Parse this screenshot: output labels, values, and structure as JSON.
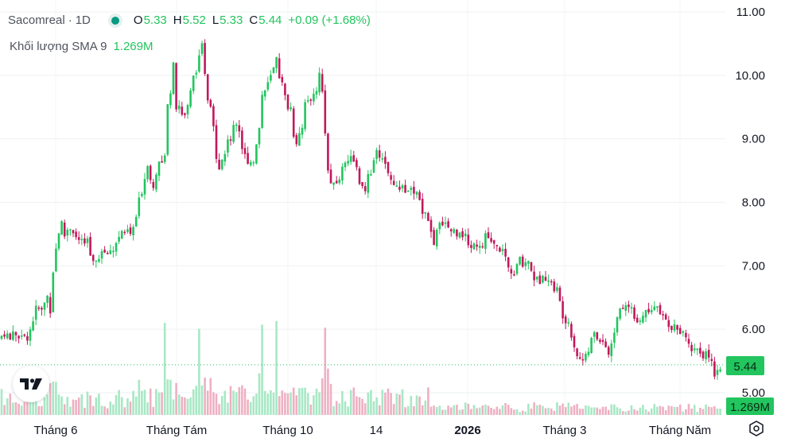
{
  "legend": {
    "symbol": "Sacomreal",
    "separator": "·",
    "interval": "1D",
    "o_label": "O",
    "o_value": "5.33",
    "h_label": "H",
    "h_value": "5.52",
    "l_label": "L",
    "l_value": "5.33",
    "c_label": "C",
    "c_value": "5.44",
    "change": "+0.09 (+1.68%)"
  },
  "volume_legend": {
    "label": "Khối lượng SMA 9",
    "value": "1.269M"
  },
  "icons": {
    "logo": "tradingview-logo-icon",
    "settings": "gear-icon"
  },
  "colors": {
    "up": "#22c55e",
    "down": "#c2185b",
    "vol_up": "#a7e8c4",
    "vol_down": "#eeb0c3",
    "price_tag": "#22c55e"
  },
  "chart_data": {
    "type": "candlestick",
    "y_axis": {
      "labels": [
        "11.00",
        "10.00",
        "9.00",
        "8.00",
        "7.00",
        "6.00",
        "5.00"
      ],
      "range": [
        4.9,
        11.1
      ]
    },
    "x_axis": {
      "labels": [
        "Tháng 6",
        "Tháng Tám",
        "Tháng 10",
        "14",
        "2026",
        "Tháng 3",
        "Tháng Năm"
      ]
    },
    "last_price_label": "5.44",
    "last_volume_label": "1.269M",
    "grid": true,
    "price_path": [
      [
        0,
        5.88
      ],
      [
        25,
        5.9
      ],
      [
        35,
        5.92
      ],
      [
        45,
        6.3
      ],
      [
        52,
        6.3
      ],
      [
        58,
        6.5
      ],
      [
        63,
        6.4
      ],
      [
        66,
        6.9
      ],
      [
        70,
        7.3
      ],
      [
        76,
        7.8
      ],
      [
        82,
        7.5
      ],
      [
        92,
        7.6
      ],
      [
        100,
        7.3
      ],
      [
        110,
        7.35
      ],
      [
        116,
        7.05
      ],
      [
        128,
        7.25
      ],
      [
        140,
        7.2
      ],
      [
        150,
        7.5
      ],
      [
        160,
        7.5
      ],
      [
        168,
        7.6
      ],
      [
        174,
        7.9
      ],
      [
        180,
        8.4
      ],
      [
        186,
        8.6
      ],
      [
        192,
        8.2
      ],
      [
        198,
        8.6
      ],
      [
        204,
        8.5
      ],
      [
        210,
        9.4
      ],
      [
        214,
        9.9
      ],
      [
        218,
        10.2
      ],
      [
        222,
        9.6
      ],
      [
        230,
        9.3
      ],
      [
        238,
        9.6
      ],
      [
        244,
        10.0
      ],
      [
        250,
        10.3
      ],
      [
        254,
        10.4
      ],
      [
        258,
        9.9
      ],
      [
        264,
        9.5
      ],
      [
        272,
        8.9
      ],
      [
        276,
        8.6
      ],
      [
        282,
        8.8
      ],
      [
        288,
        9.0
      ],
      [
        294,
        9.2
      ],
      [
        300,
        9.3
      ],
      [
        306,
        8.8
      ],
      [
        312,
        8.6
      ],
      [
        318,
        8.7
      ],
      [
        324,
        9.0
      ],
      [
        330,
        9.7
      ],
      [
        336,
        9.9
      ],
      [
        342,
        10.0
      ],
      [
        348,
        10.2
      ],
      [
        354,
        9.8
      ],
      [
        360,
        9.7
      ],
      [
        366,
        9.4
      ],
      [
        372,
        9.0
      ],
      [
        378,
        9.1
      ],
      [
        384,
        9.6
      ],
      [
        390,
        9.5
      ],
      [
        396,
        9.8
      ],
      [
        402,
        10.0
      ],
      [
        408,
        9.5
      ],
      [
        412,
        8.7
      ],
      [
        416,
        8.2
      ],
      [
        422,
        8.3
      ],
      [
        428,
        8.4
      ],
      [
        434,
        8.7
      ],
      [
        440,
        8.75
      ],
      [
        446,
        8.6
      ],
      [
        452,
        8.3
      ],
      [
        458,
        8.2
      ],
      [
        464,
        8.4
      ],
      [
        470,
        8.6
      ],
      [
        476,
        8.8
      ],
      [
        482,
        8.6
      ],
      [
        488,
        8.5
      ],
      [
        494,
        8.3
      ],
      [
        500,
        8.3
      ],
      [
        506,
        8.2
      ],
      [
        512,
        8.1
      ],
      [
        518,
        8.2
      ],
      [
        524,
        8.1
      ],
      [
        530,
        7.9
      ],
      [
        536,
        7.85
      ],
      [
        542,
        7.5
      ],
      [
        546,
        7.3
      ],
      [
        552,
        7.6
      ],
      [
        558,
        7.6
      ],
      [
        566,
        7.6
      ],
      [
        574,
        7.5
      ],
      [
        580,
        7.6
      ],
      [
        586,
        7.4
      ],
      [
        592,
        7.3
      ],
      [
        598,
        7.4
      ],
      [
        604,
        7.3
      ],
      [
        610,
        7.45
      ],
      [
        616,
        7.4
      ],
      [
        622,
        7.3
      ],
      [
        628,
        7.3
      ],
      [
        634,
        7.1
      ],
      [
        640,
        7.0
      ],
      [
        646,
        6.9
      ],
      [
        652,
        7.1
      ],
      [
        658,
        7.05
      ],
      [
        664,
        7.1
      ],
      [
        670,
        6.9
      ],
      [
        676,
        6.75
      ],
      [
        682,
        6.8
      ],
      [
        688,
        6.85
      ],
      [
        694,
        6.7
      ],
      [
        700,
        6.6
      ],
      [
        706,
        6.35
      ],
      [
        712,
        6.2
      ],
      [
        718,
        6.0
      ],
      [
        724,
        5.7
      ],
      [
        730,
        5.5
      ],
      [
        736,
        5.6
      ],
      [
        742,
        5.8
      ],
      [
        748,
        5.9
      ],
      [
        754,
        5.8
      ],
      [
        760,
        5.8
      ],
      [
        764,
        5.55
      ],
      [
        770,
        5.8
      ],
      [
        776,
        6.2
      ],
      [
        782,
        6.4
      ],
      [
        788,
        6.35
      ],
      [
        794,
        6.3
      ],
      [
        800,
        6.0
      ],
      [
        806,
        6.2
      ],
      [
        812,
        6.3
      ],
      [
        818,
        6.38
      ],
      [
        824,
        6.3
      ],
      [
        830,
        6.2
      ],
      [
        836,
        6.15
      ],
      [
        842,
        6.05
      ],
      [
        848,
        6.05
      ],
      [
        854,
        5.95
      ],
      [
        860,
        5.9
      ],
      [
        866,
        5.8
      ],
      [
        872,
        5.7
      ],
      [
        878,
        5.65
      ],
      [
        884,
        5.62
      ],
      [
        890,
        5.6
      ],
      [
        894,
        5.45
      ],
      [
        898,
        5.3
      ],
      [
        902,
        5.38
      ],
      [
        906,
        5.44
      ]
    ]
  }
}
